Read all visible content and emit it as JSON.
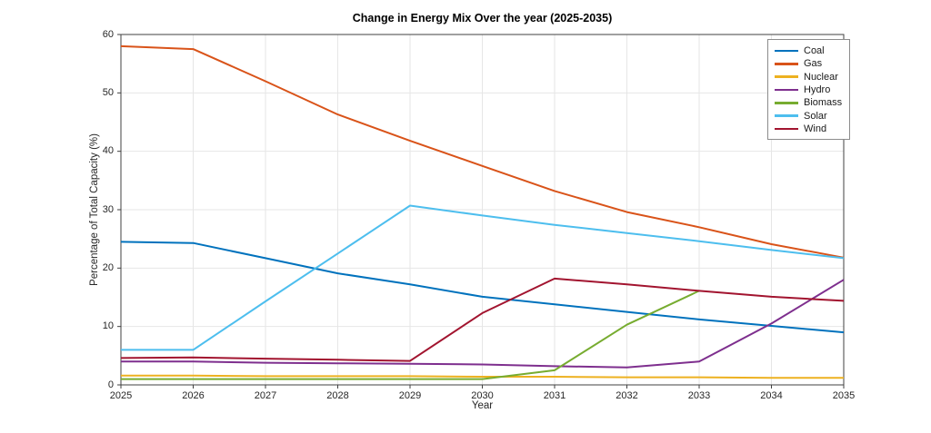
{
  "figure": {
    "background": "#ffffff",
    "axis_color": "#404040",
    "grid_color": "#e6e6e6"
  },
  "chart_data": {
    "type": "line",
    "title": "Change in Energy Mix Over the year (2025-2035)",
    "xlabel": "Year",
    "ylabel": "Percentage of Total Capacity (%)",
    "x": [
      2025,
      2026,
      2027,
      2028,
      2029,
      2030,
      2031,
      2032,
      2033,
      2034,
      2035
    ],
    "xlim": [
      2025,
      2035
    ],
    "ylim": [
      0,
      60
    ],
    "yticks": [
      0,
      10,
      20,
      30,
      40,
      50,
      60
    ],
    "grid": true,
    "legend_position": "northeast-inside",
    "series": [
      {
        "name": "Coal",
        "color": "#0072BD",
        "values": [
          24.5,
          24.3,
          21.7,
          19.1,
          17.2,
          15.1,
          13.8,
          12.5,
          11.2,
          10.1,
          9.0
        ]
      },
      {
        "name": "Gas",
        "color": "#D95319",
        "values": [
          58.0,
          57.5,
          52.0,
          46.3,
          41.8,
          37.5,
          33.2,
          29.6,
          27.0,
          24.1,
          21.8
        ]
      },
      {
        "name": "Nuclear",
        "color": "#EDB120",
        "values": [
          1.6,
          1.6,
          1.5,
          1.5,
          1.5,
          1.4,
          1.4,
          1.3,
          1.3,
          1.2,
          1.2
        ]
      },
      {
        "name": "Hydro",
        "color": "#7E2F8E",
        "values": [
          4.0,
          4.0,
          3.8,
          3.7,
          3.6,
          3.5,
          3.2,
          3.0,
          4.0,
          10.5,
          18.0
        ]
      },
      {
        "name": "Biomass",
        "color": "#77AC30",
        "values": [
          1.0,
          1.0,
          1.0,
          1.0,
          1.0,
          1.0,
          2.5,
          10.3,
          16.1,
          null,
          null
        ]
      },
      {
        "name": "Solar",
        "color": "#4DBEEE",
        "values": [
          6.0,
          6.0,
          14.3,
          22.5,
          30.7,
          29.0,
          27.4,
          26.0,
          24.6,
          23.1,
          21.7
        ]
      },
      {
        "name": "Wind",
        "color": "#A2142F",
        "values": [
          4.6,
          4.7,
          4.5,
          4.3,
          4.1,
          12.3,
          18.2,
          17.2,
          16.1,
          15.1,
          14.4
        ]
      }
    ]
  }
}
